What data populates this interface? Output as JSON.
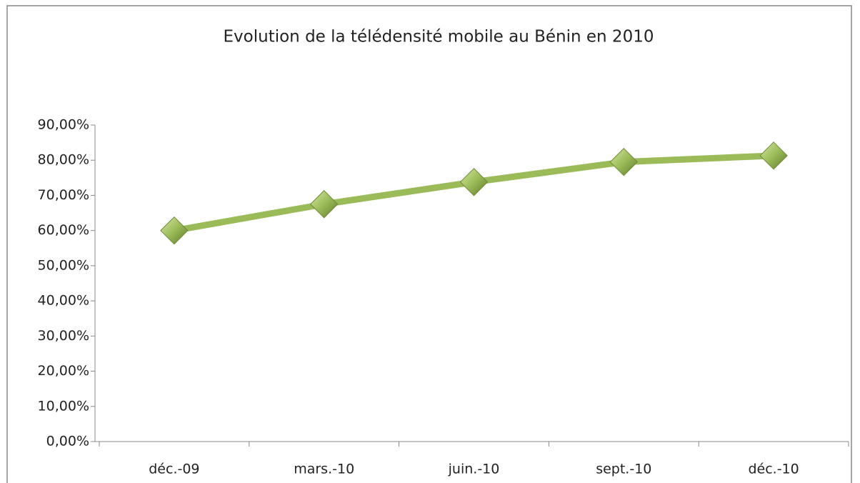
{
  "chart_data": {
    "type": "line",
    "title": "Evolution de la télédensité mobile au Bénin en 2010",
    "categories": [
      "déc.-09",
      "mars.-10",
      "juin.-10",
      "sept.-10",
      "déc.-10"
    ],
    "series": [
      {
        "color": "#9bbb59",
        "values": [
          60,
          67.5,
          73.8,
          79.5,
          81.3
        ]
      }
    ],
    "ylim": [
      0,
      90
    ],
    "yticks": [
      {
        "value": 0,
        "label": "0,00%"
      },
      {
        "value": 10,
        "label": "10,00%"
      },
      {
        "value": 20,
        "label": "20,00%"
      },
      {
        "value": 30,
        "label": "30,00%"
      },
      {
        "value": 40,
        "label": "40,00%"
      },
      {
        "value": 50,
        "label": "50,00%"
      },
      {
        "value": 60,
        "label": "60,00%"
      },
      {
        "value": 70,
        "label": "70,00%"
      },
      {
        "value": 80,
        "label": "80,00%"
      },
      {
        "value": 90,
        "label": "90,00%"
      }
    ]
  }
}
